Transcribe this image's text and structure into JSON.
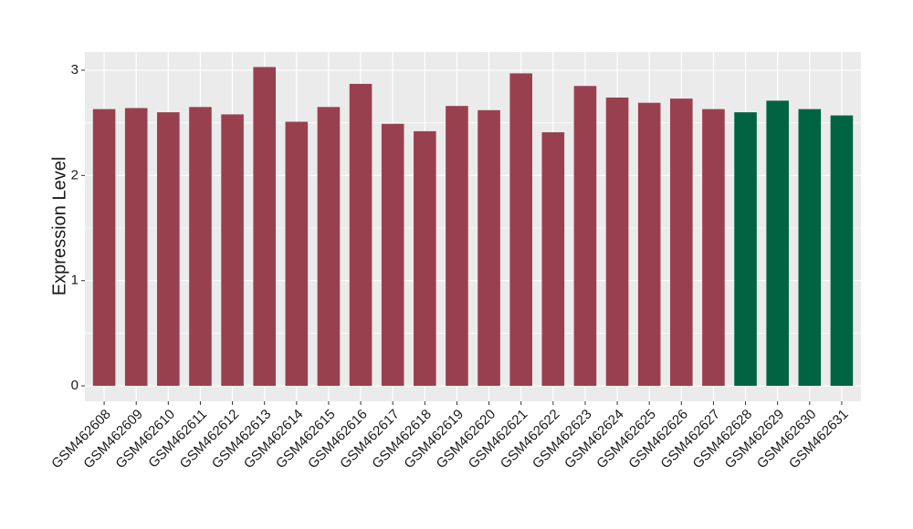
{
  "chart_data": {
    "type": "bar",
    "y_label": "Expression Level",
    "categories": [
      "GSM462608",
      "GSM462609",
      "GSM462610",
      "GSM462611",
      "GSM462612",
      "GSM462613",
      "GSM462614",
      "GSM462615",
      "GSM462616",
      "GSM462617",
      "GSM462618",
      "GSM462619",
      "GSM462620",
      "GSM462621",
      "GSM462622",
      "GSM462623",
      "GSM462624",
      "GSM462625",
      "GSM462626",
      "GSM462627",
      "GSM462628",
      "GSM462629",
      "GSM462630",
      "GSM462631"
    ],
    "values": [
      2.63,
      2.64,
      2.6,
      2.65,
      2.58,
      3.03,
      2.51,
      2.65,
      2.87,
      2.49,
      2.42,
      2.66,
      2.62,
      2.97,
      2.41,
      2.85,
      2.74,
      2.69,
      2.73,
      2.63,
      2.6,
      2.71,
      2.63,
      2.57
    ],
    "colors": [
      "#99404f",
      "#99404f",
      "#99404f",
      "#99404f",
      "#99404f",
      "#99404f",
      "#99404f",
      "#99404f",
      "#99404f",
      "#99404f",
      "#99404f",
      "#99404f",
      "#99404f",
      "#99404f",
      "#99404f",
      "#99404f",
      "#99404f",
      "#99404f",
      "#99404f",
      "#99404f",
      "#006443",
      "#006443",
      "#006443",
      "#006443"
    ],
    "ylim": [
      -0.147,
      3.173
    ],
    "yticks": [
      0,
      1,
      2,
      3
    ],
    "minor_yticks": [
      0.5,
      1.5,
      2.5
    ],
    "grid": true
  }
}
